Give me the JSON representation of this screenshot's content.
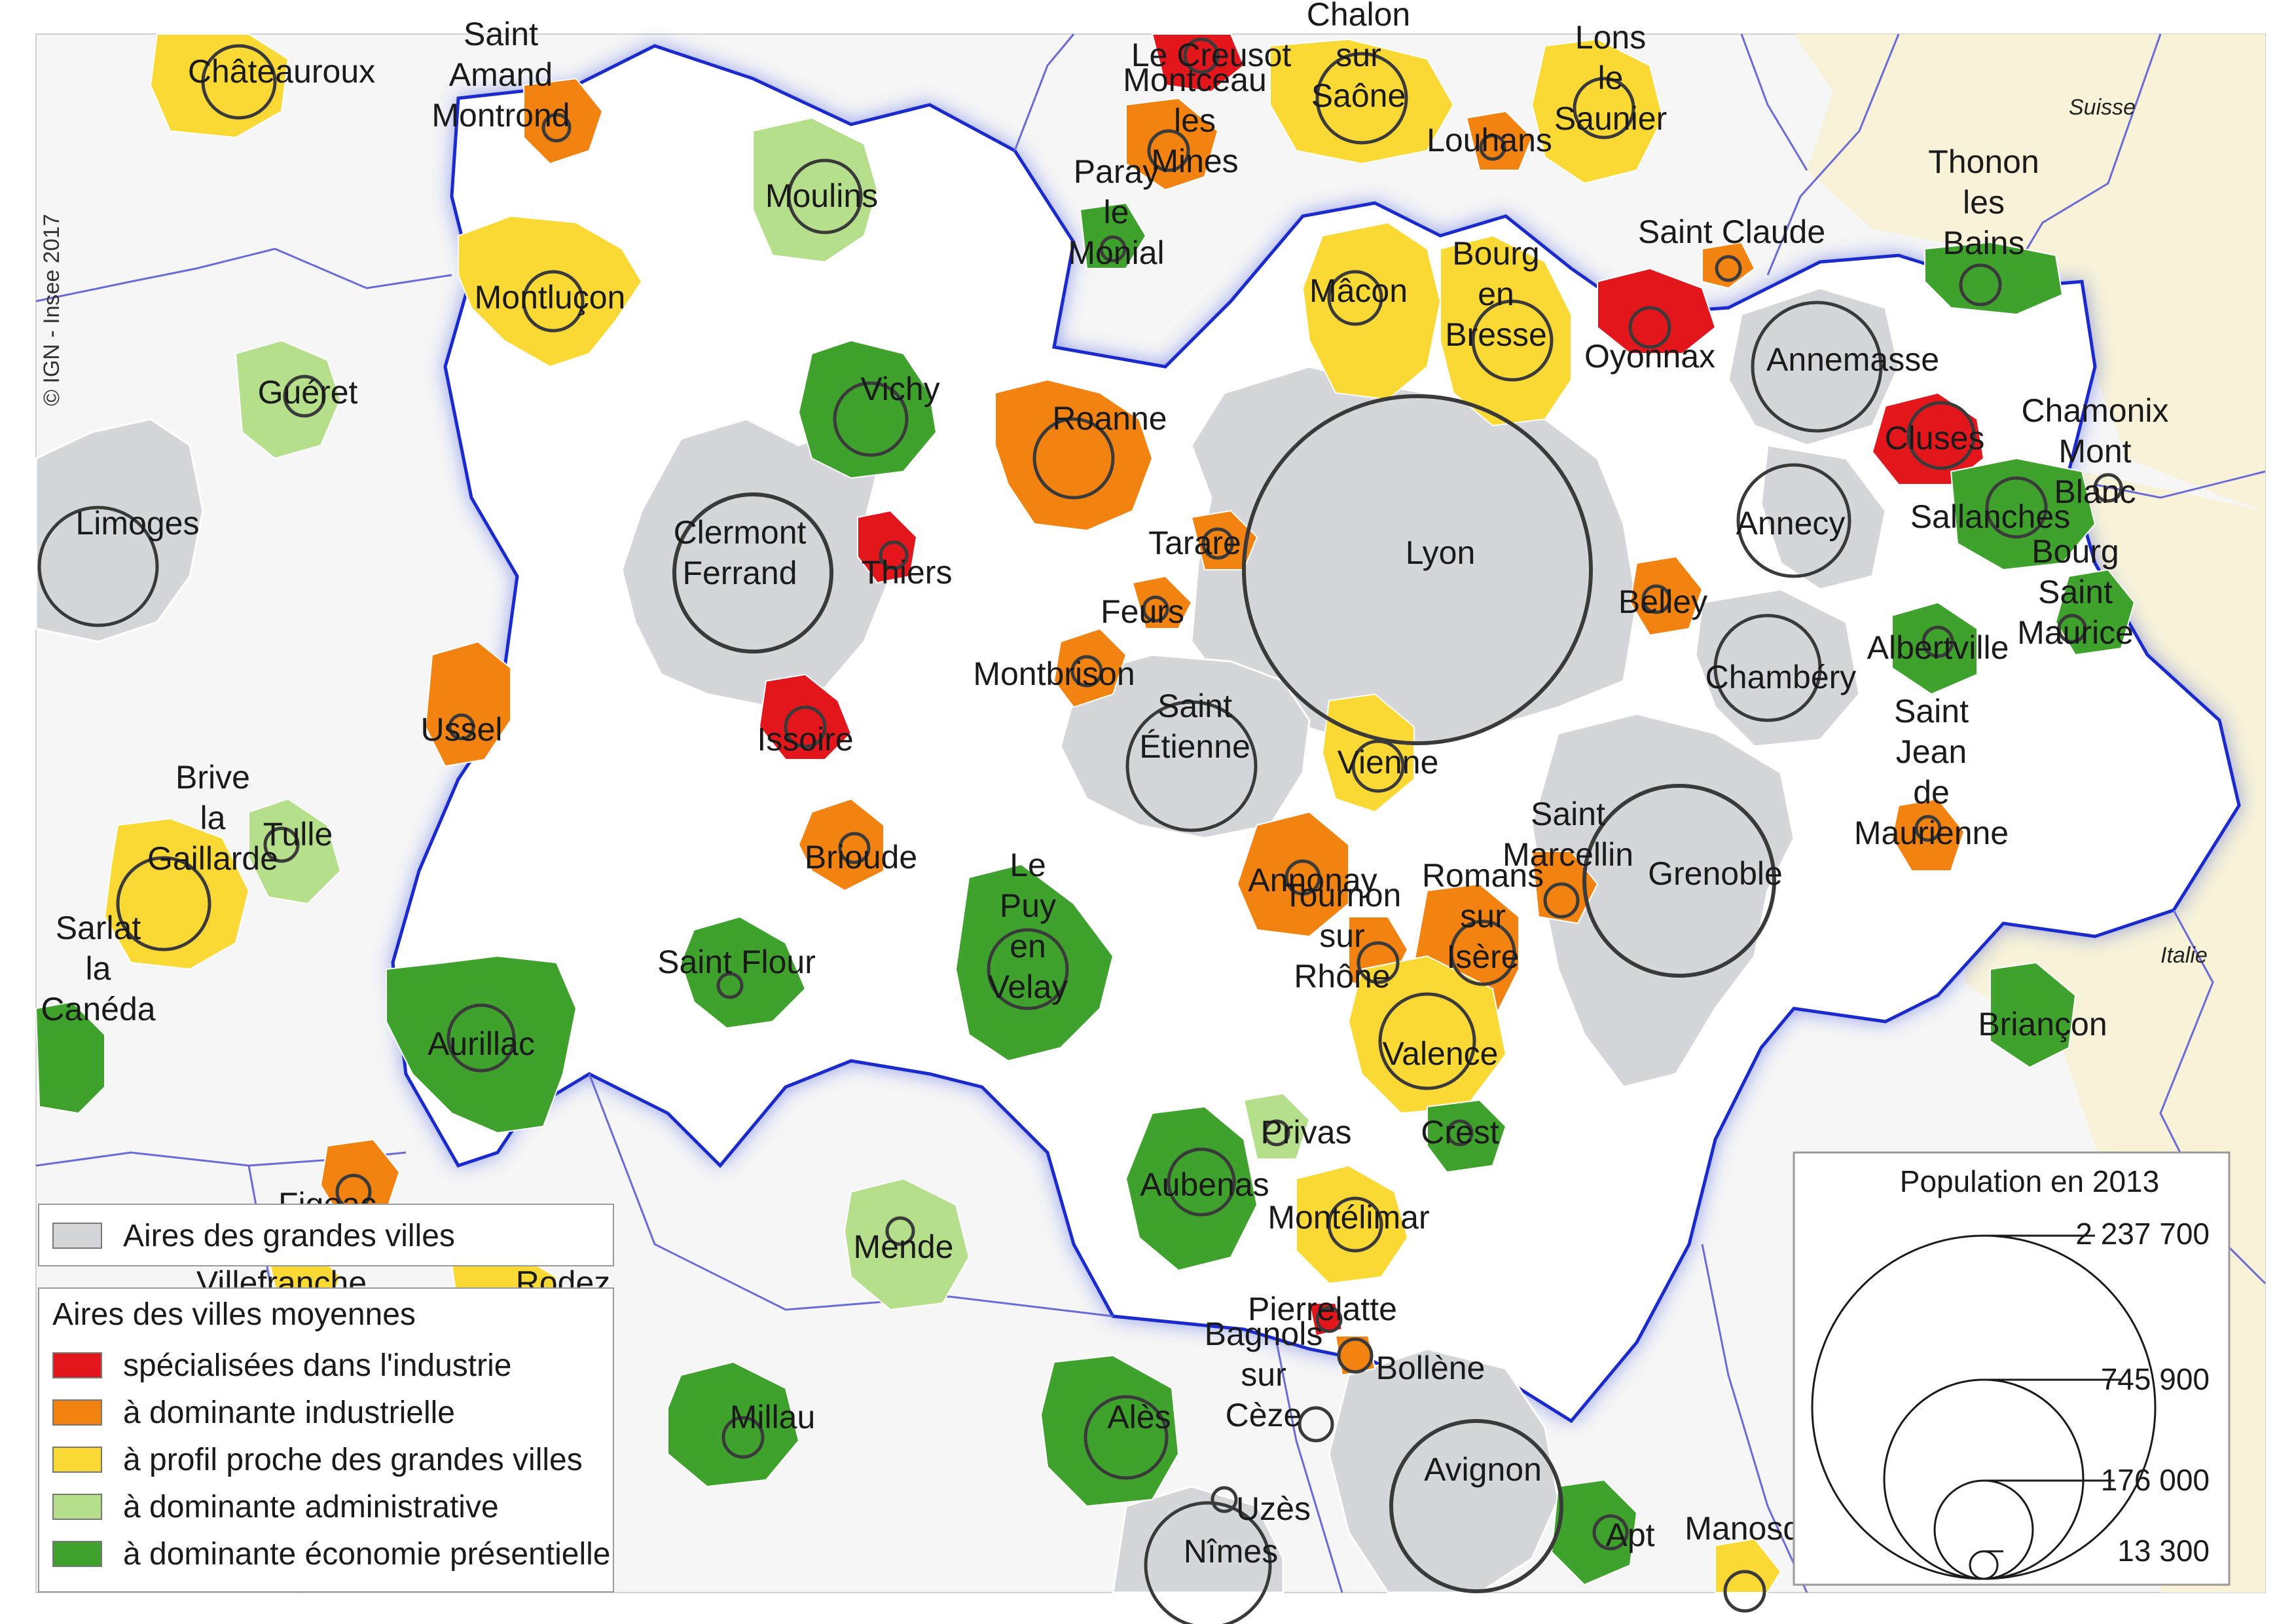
{
  "copyright": "© IGN - Insee 2017",
  "countries": {
    "switzerland": "Suisse",
    "italy": "Italie"
  },
  "colors": {
    "industry_specialized": "#e3161c",
    "industrial": "#f28310",
    "big_city_profile": "#fbd935",
    "administrative": "#b5df8a",
    "presential": "#3ea22c",
    "big_city_area": "#d4d6d9",
    "region_border": "#1a2acc",
    "dept_border": "#6a6ad8"
  },
  "legend_big": {
    "label": "Aires des grandes villes"
  },
  "legend_mid": {
    "title": "Aires des villes moyennes",
    "items": [
      {
        "label": "spécialisées dans l'industrie",
        "color": "#e3161c"
      },
      {
        "label": "à dominante industrielle",
        "color": "#f28310"
      },
      {
        "label": "à profil proche des grandes villes",
        "color": "#fbd935"
      },
      {
        "label": "à dominante administrative",
        "color": "#b5df8a"
      },
      {
        "label": "à dominante économie présentielle",
        "color": "#3ea22c"
      }
    ]
  },
  "population_legend": {
    "title": "Population en 2013",
    "values": [
      "2 237 700",
      "745 900",
      "176 000",
      "13 300"
    ]
  },
  "cities": [
    {
      "label": "Lyon",
      "color": "#d4d6d9"
    },
    {
      "label": "Clermont Ferrand",
      "color": "#d4d6d9"
    },
    {
      "label": "Saint Étienne",
      "color": "#d4d6d9"
    },
    {
      "label": "Grenoble",
      "color": "#d4d6d9"
    },
    {
      "label": "Annecy",
      "color": "#d4d6d9"
    },
    {
      "label": "Chambéry",
      "color": "#d4d6d9"
    },
    {
      "label": "Annemasse",
      "color": "#d4d6d9"
    },
    {
      "label": "Limoges",
      "color": "#d4d6d9"
    },
    {
      "label": "Avignon",
      "color": "#d4d6d9"
    },
    {
      "label": "Nîmes",
      "color": "#d4d6d9"
    },
    {
      "label": "Oyonnax",
      "color": "#e3161c"
    },
    {
      "label": "Cluses",
      "color": "#e3161c"
    },
    {
      "label": "Thiers",
      "color": "#e3161c"
    },
    {
      "label": "Issoire",
      "color": "#e3161c"
    },
    {
      "label": "Pierrelatte",
      "color": "#e3161c"
    },
    {
      "label": "Le Creusot",
      "color": "#e3161c"
    },
    {
      "label": "Roanne",
      "color": "#f28310"
    },
    {
      "label": "Tarare",
      "color": "#f28310"
    },
    {
      "label": "Feurs",
      "color": "#f28310"
    },
    {
      "label": "Montbrison",
      "color": "#f28310"
    },
    {
      "label": "Brioude",
      "color": "#f28310"
    },
    {
      "label": "Annonay",
      "color": "#f28310"
    },
    {
      "label": "Tournon sur Rhône",
      "color": "#f28310"
    },
    {
      "label": "Romans sur Isère",
      "color": "#f28310"
    },
    {
      "label": "Saint Marcellin",
      "color": "#f28310"
    },
    {
      "label": "Belley",
      "color": "#f28310"
    },
    {
      "label": "Saint Jean de Maurienne",
      "color": "#f28310"
    },
    {
      "label": "Saint Claude",
      "color": "#f28310"
    },
    {
      "label": "Ussel",
      "color": "#f28310"
    },
    {
      "label": "Saint Amand Montrond",
      "color": "#f28310"
    },
    {
      "label": "Montceau les Mines",
      "color": "#f28310"
    },
    {
      "label": "Louhans",
      "color": "#f28310"
    },
    {
      "label": "Bollène",
      "color": "#f28310"
    },
    {
      "label": "Figeac",
      "color": "#f28310"
    },
    {
      "label": "Montluçon",
      "color": "#fbd935"
    },
    {
      "label": "Mâcon",
      "color": "#fbd935"
    },
    {
      "label": "Bourg en Bresse",
      "color": "#fbd935"
    },
    {
      "label": "Vienne",
      "color": "#fbd935"
    },
    {
      "label": "Valence",
      "color": "#fbd935"
    },
    {
      "label": "Montélimar",
      "color": "#fbd935"
    },
    {
      "label": "Châteauroux",
      "color": "#fbd935"
    },
    {
      "label": "Chalon sur Saône",
      "color": "#fbd935"
    },
    {
      "label": "Lons le Saunier",
      "color": "#fbd935"
    },
    {
      "label": "Brive la Gaillarde",
      "color": "#fbd935"
    },
    {
      "label": "Bagnols sur Cèze",
      "color": "#fbd935"
    },
    {
      "label": "Villefranche",
      "color": "#fbd935"
    },
    {
      "label": "Moulins",
      "color": "#b5df8a"
    },
    {
      "label": "Privas",
      "color": "#b5df8a"
    },
    {
      "label": "Guéret",
      "color": "#b5df8a"
    },
    {
      "label": "Tulle",
      "color": "#b5df8a"
    },
    {
      "label": "Mende",
      "color": "#b5df8a"
    },
    {
      "label": "Uzès",
      "color": "#b5df8a"
    },
    {
      "label": "Vichy",
      "color": "#3ea22c"
    },
    {
      "label": "Aurillac",
      "color": "#3ea22c"
    },
    {
      "label": "Saint Flour",
      "color": "#3ea22c"
    },
    {
      "label": "Le Puy en Velay",
      "color": "#3ea22c"
    },
    {
      "label": "Aubenas",
      "color": "#3ea22c"
    },
    {
      "label": "Crest",
      "color": "#3ea22c"
    },
    {
      "label": "Albertville",
      "color": "#3ea22c"
    },
    {
      "label": "Sallanches",
      "color": "#3ea22c"
    },
    {
      "label": "Chamonix Mont Blanc",
      "color": "#3ea22c"
    },
    {
      "label": "Bourg Saint Maurice",
      "color": "#3ea22c"
    },
    {
      "label": "Thonon les Bains",
      "color": "#3ea22c"
    },
    {
      "label": "Paray le Monial",
      "color": "#3ea22c"
    },
    {
      "label": "Briançon",
      "color": "#3ea22c"
    },
    {
      "label": "Millau",
      "color": "#3ea22c"
    },
    {
      "label": "Alès",
      "color": "#3ea22c"
    },
    {
      "label": "Apt",
      "color": "#3ea22c"
    },
    {
      "label": "Sarlat la Canéda",
      "color": "#3ea22c"
    },
    {
      "label": "Manosque",
      "color": "#fbd935"
    },
    {
      "label": "Rodez",
      "color": "#fbd935"
    }
  ]
}
